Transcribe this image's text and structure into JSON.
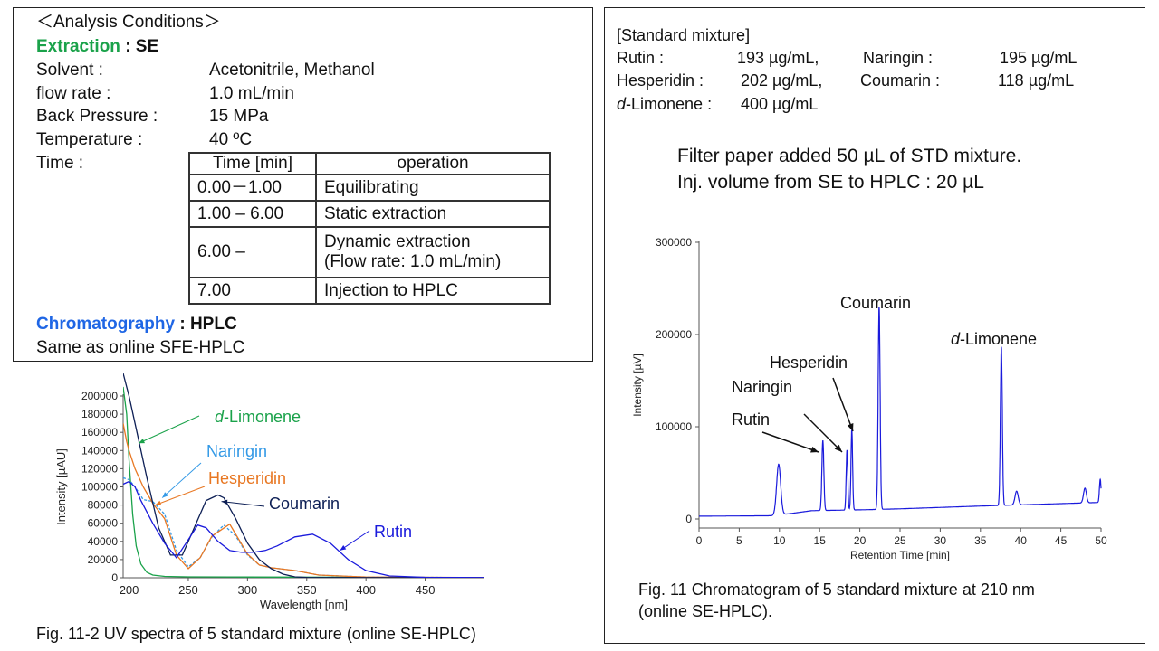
{
  "conditions": {
    "heading": "＜Analysis Conditions＞",
    "extraction_label": "Extraction",
    "extraction_value": " : SE",
    "rows": [
      {
        "label": "Solvent :",
        "value": "Acetonitrile, Methanol"
      },
      {
        "label": "flow rate :",
        "value": "1.0 mL/min"
      },
      {
        "label": "Back Pressure :",
        "value": "15 MPa"
      },
      {
        "label": "Temperature :",
        "value": "40 ºC"
      },
      {
        "label": "Time :",
        "value": ""
      }
    ],
    "time_table": {
      "headers": [
        "Time [min]",
        "operation"
      ],
      "rows": [
        [
          "0.00－1.00",
          "Equilibrating"
        ],
        [
          "1.00 – 6.00",
          "Static extraction"
        ],
        [
          "6.00 –",
          "Dynamic extraction"
        ],
        [
          "7.00",
          "Injection to HPLC"
        ]
      ],
      "row3_line2": "(Flow rate: 1.0 mL/min)"
    },
    "chromatography_label": "Chromatography",
    "chromatography_value": " : HPLC",
    "same_as": "Same as online SFE-HPLC"
  },
  "standard": {
    "heading": "[Standard mixture]",
    "items": [
      {
        "name": "Rutin :",
        "value": "193 µg/mL,"
      },
      {
        "name": "Naringin :",
        "value": "195 µg/mL"
      },
      {
        "name": "Hesperidin :",
        "value": "202 µg/mL,"
      },
      {
        "name": "Coumarin :",
        "value": "118 µg/mL"
      },
      {
        "name_italic": "d",
        "name": "-Limonene :",
        "value": "400 µg/mL"
      }
    ],
    "note_line1": "Filter paper added 50 µL of STD mixture.",
    "note_line2": "Inj. volume from SE to HPLC : 20 µL"
  },
  "captions": {
    "uv": "Fig. 11-2 UV spectra of 5 standard mixture  (online SE-HPLC)",
    "chrom_line1": "Fig. 11 Chromatogram  of 5 standard mixture at 210 nm",
    "chrom_line2": "(online SE-HPLC)."
  },
  "chart_data": [
    {
      "type": "line",
      "title": "",
      "xlabel": "Wavelength [nm]",
      "ylabel": "Intensity [µAU]",
      "xlim": [
        195,
        500
      ],
      "ylim": [
        0,
        200000
      ],
      "xticks": [
        200,
        250,
        300,
        350,
        400,
        450
      ],
      "yticks": [
        0,
        20000,
        40000,
        60000,
        80000,
        100000,
        120000,
        140000,
        160000,
        180000,
        200000
      ],
      "series": [
        {
          "name": "d-Limonene",
          "color": "#1aa24a",
          "x": [
            195,
            198,
            200,
            203,
            206,
            210,
            215,
            220,
            230,
            250,
            300,
            400,
            500
          ],
          "y": [
            210000,
            180000,
            130000,
            70000,
            35000,
            15000,
            6000,
            3000,
            1500,
            1000,
            800,
            500,
            300
          ]
        },
        {
          "name": "Naringin",
          "color": "#3399e6",
          "x": [
            195,
            200,
            205,
            212,
            220,
            230,
            240,
            250,
            260,
            270,
            280,
            290,
            300,
            310,
            320,
            340,
            360,
            400,
            500
          ],
          "y": [
            110000,
            108000,
            100000,
            86000,
            84000,
            70000,
            30000,
            12000,
            22000,
            45000,
            58000,
            46000,
            25000,
            14000,
            11000,
            8000,
            3000,
            800,
            200
          ]
        },
        {
          "name": "Hesperidin",
          "color": "#e87722",
          "x": [
            195,
            198,
            200,
            205,
            212,
            220,
            230,
            240,
            250,
            260,
            270,
            285,
            300,
            310,
            320,
            340,
            360,
            400,
            500
          ],
          "y": [
            170000,
            150000,
            140000,
            120000,
            100000,
            82000,
            65000,
            25000,
            10000,
            22000,
            46000,
            59000,
            26000,
            14000,
            11000,
            8000,
            3000,
            800,
            200
          ]
        },
        {
          "name": "Coumarin",
          "color": "#0d1f55",
          "x": [
            195,
            200,
            205,
            215,
            225,
            235,
            245,
            255,
            265,
            275,
            280,
            290,
            300,
            310,
            320,
            330,
            340,
            350,
            500
          ],
          "y": [
            225000,
            200000,
            170000,
            110000,
            55000,
            25000,
            25000,
            55000,
            85000,
            91000,
            88000,
            65000,
            38000,
            20000,
            10000,
            4000,
            1000,
            300,
            0
          ]
        },
        {
          "name": "Rutin",
          "color": "#1a1adc",
          "x": [
            195,
            200,
            205,
            210,
            220,
            230,
            240,
            250,
            258,
            265,
            275,
            285,
            295,
            305,
            315,
            325,
            340,
            355,
            370,
            385,
            400,
            420,
            450,
            500
          ],
          "y": [
            103000,
            106000,
            100000,
            85000,
            60000,
            38000,
            22000,
            42000,
            58000,
            55000,
            40000,
            30000,
            28000,
            28000,
            30000,
            35000,
            45000,
            48000,
            38000,
            20000,
            8000,
            2000,
            500,
            200
          ]
        }
      ],
      "annotations": [
        {
          "text_italic": "d",
          "text": "-Limonene",
          "color": "#1aa24a"
        },
        {
          "text": "Naringin",
          "color": "#3399e6"
        },
        {
          "text": "Hesperidin",
          "color": "#e87722"
        },
        {
          "text": "Coumarin",
          "color": "#0d1f55"
        },
        {
          "text": "Rutin",
          "color": "#1a1adc"
        }
      ]
    },
    {
      "type": "line",
      "title": "",
      "xlabel": "Retention Time [min]",
      "ylabel": "Intensity [µV]",
      "xlim": [
        0,
        50
      ],
      "ylim": [
        0,
        300000
      ],
      "xticks": [
        0,
        5,
        10,
        15,
        20,
        25,
        30,
        35,
        40,
        45,
        50
      ],
      "yticks": [
        0,
        100000,
        200000,
        300000
      ],
      "line_color": "#1a1adc",
      "baseline": {
        "x": [
          0,
          9.0,
          11.5,
          14.0,
          20.5,
          25.0,
          35.0,
          50.0
        ],
        "y": [
          3000,
          3500,
          6000,
          9000,
          10000,
          11000,
          14000,
          18000
        ]
      },
      "peaks": [
        {
          "rt": 9.9,
          "height": 55000,
          "width": 0.25
        },
        {
          "rt": 15.4,
          "height": 76000,
          "width": 0.12,
          "label": "Rutin"
        },
        {
          "rt": 18.4,
          "height": 65000,
          "width": 0.1,
          "label": "Naringin"
        },
        {
          "rt": 19.0,
          "height": 87000,
          "width": 0.1,
          "label": "Hesperidin"
        },
        {
          "rt": 22.4,
          "height": 220000,
          "width": 0.12,
          "label": "Coumarin"
        },
        {
          "rt": 37.6,
          "height": 172000,
          "width": 0.12,
          "label_italic": "d",
          "label": "-Limonene"
        },
        {
          "rt": 39.5,
          "height": 15000,
          "width": 0.2
        },
        {
          "rt": 48.0,
          "height": 16000,
          "width": 0.18
        },
        {
          "rt": 49.9,
          "height": 25000,
          "width": 0.1
        }
      ]
    }
  ]
}
